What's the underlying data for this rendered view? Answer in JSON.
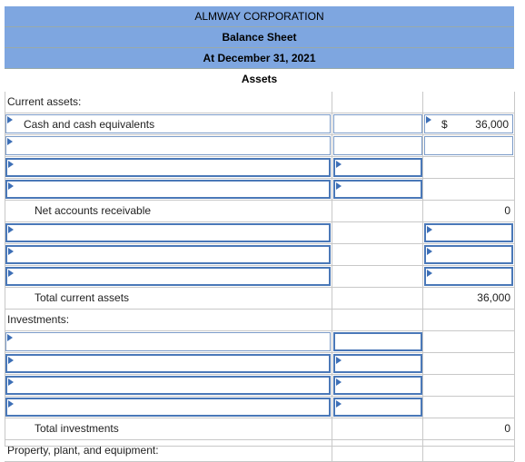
{
  "header": {
    "company": "ALMWAY CORPORATION",
    "statement": "Balance Sheet",
    "date": "At December 31, 2021",
    "section": "Assets"
  },
  "rows": {
    "current_assets": "Current assets:",
    "cash": {
      "label": "Cash and cash equivalents",
      "currency": "$",
      "amount": "36,000"
    },
    "net_ar": {
      "label": "Net accounts receivable",
      "amount": "0"
    },
    "total_current": {
      "label": "Total current assets",
      "amount": "36,000"
    },
    "investments": "Investments:",
    "total_investments": {
      "label": "Total investments",
      "amount": "0"
    },
    "ppe": "Property, plant, and equipment:"
  },
  "colors": {
    "header_band": "#7ea6e0",
    "input_border": "#7b9bc8",
    "marker": "#3d6fb6"
  }
}
